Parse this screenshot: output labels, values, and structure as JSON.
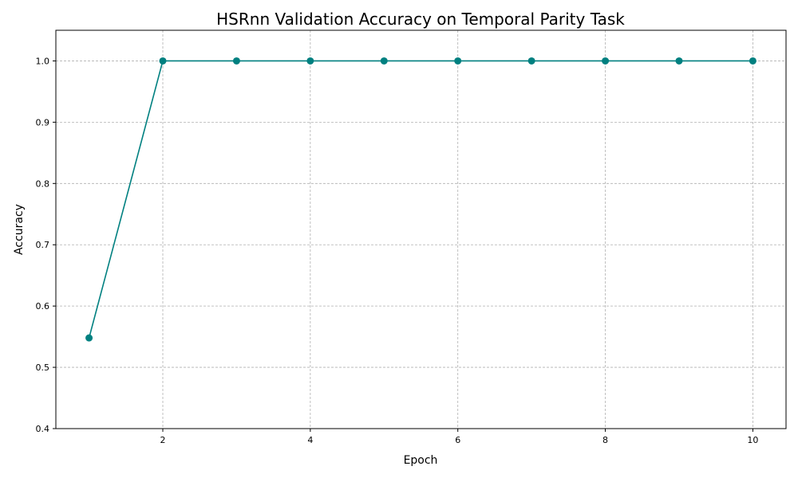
{
  "chart_data": {
    "type": "line",
    "title": "HSRnn Validation Accuracy on Temporal Parity Task",
    "xlabel": "Epoch",
    "ylabel": "Accuracy",
    "x": [
      1,
      2,
      3,
      4,
      5,
      6,
      7,
      8,
      9,
      10
    ],
    "series": [
      {
        "values": [
          0.548,
          1.0,
          1.0,
          1.0,
          1.0,
          1.0,
          1.0,
          1.0,
          1.0,
          1.0
        ],
        "color": "#008080",
        "marker": "circle"
      }
    ],
    "xlim": [
      0.55,
      10.45
    ],
    "ylim": [
      0.4,
      1.05
    ],
    "xticks": [
      2,
      4,
      6,
      8,
      10
    ],
    "xtick_labels": [
      "2",
      "4",
      "6",
      "8",
      "10"
    ],
    "yticks": [
      0.4,
      0.5,
      0.6,
      0.7,
      0.8,
      0.9,
      1.0
    ],
    "ytick_labels": [
      "0.4",
      "0.5",
      "0.6",
      "0.7",
      "0.8",
      "0.9",
      "1.0"
    ],
    "grid": true,
    "legend": false
  }
}
